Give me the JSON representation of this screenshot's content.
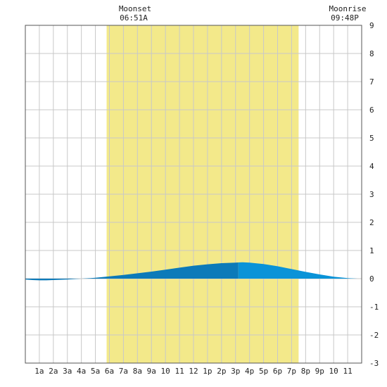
{
  "moon": {
    "set_label": "Moonset",
    "set_time": "06:51A",
    "rise_label": "Moonrise",
    "rise_time": "09:48P"
  },
  "chart_data": {
    "type": "area",
    "title": "",
    "xlabel": "",
    "ylabel": "",
    "x_ticks": [
      "1a",
      "2a",
      "3a",
      "4a",
      "5a",
      "6a",
      "7a",
      "8a",
      "9a",
      "10",
      "11",
      "12",
      "1p",
      "2p",
      "3p",
      "4p",
      "5p",
      "6p",
      "7p",
      "8p",
      "9p",
      "10",
      "11"
    ],
    "y_ticks": [
      -3,
      -2,
      -1,
      0,
      1,
      2,
      3,
      4,
      5,
      6,
      7,
      8,
      9
    ],
    "xlim": [
      0,
      24
    ],
    "ylim": [
      -3,
      9
    ],
    "grid": true,
    "daylight_band": {
      "start_hour": 5.8,
      "end_hour": 19.5
    },
    "series": [
      {
        "x": [
          0,
          0.5,
          1,
          1.5,
          2,
          3,
          4,
          5,
          6,
          7,
          8,
          9,
          10,
          11,
          12,
          13,
          14,
          15,
          15.5,
          16,
          17,
          18,
          19,
          20,
          21,
          22,
          23,
          23.7
        ],
        "y": [
          -0.03,
          -0.05,
          -0.06,
          -0.06,
          -0.05,
          -0.03,
          0.0,
          0.03,
          0.08,
          0.13,
          0.19,
          0.25,
          0.32,
          0.39,
          0.46,
          0.51,
          0.55,
          0.57,
          0.58,
          0.57,
          0.52,
          0.44,
          0.34,
          0.24,
          0.15,
          0.07,
          0.02,
          0.0
        ]
      }
    ],
    "colors": {
      "daylight": "#f3e98a",
      "tide_dark": "#0c7ab9",
      "tide_light": "#0a93d8",
      "tide_split_hour": 15.2,
      "grid": "#c8c8c8",
      "border": "#555555"
    }
  }
}
